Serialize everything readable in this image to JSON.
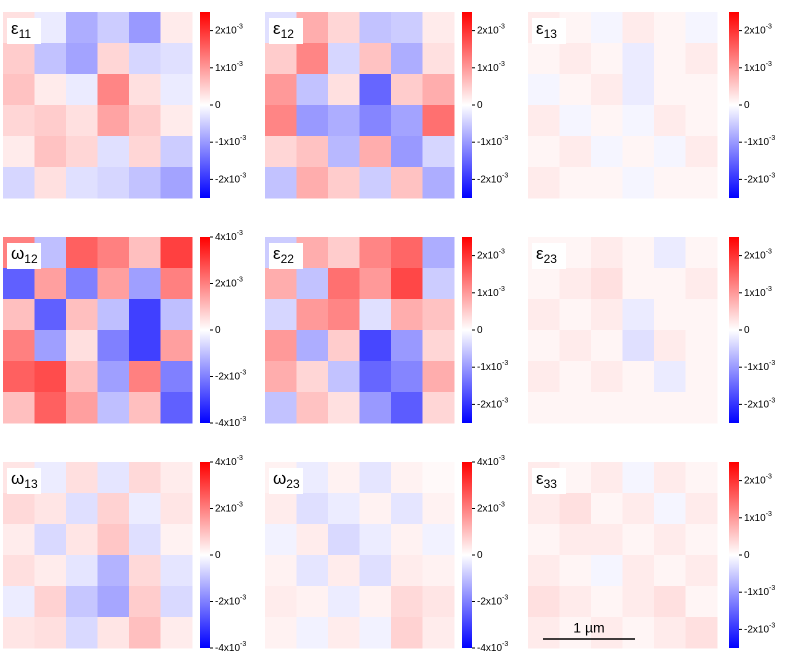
{
  "chart_data": [
    {
      "type": "heatmap",
      "symbol": "ε",
      "subscript": "11",
      "zlim": [
        -0.0025,
        0.0025
      ],
      "zticks": [
        {
          "value": 0.002,
          "label": "2x10",
          "exponent": "-3"
        },
        {
          "value": 0.001,
          "label": "1x10",
          "exponent": "-3"
        },
        0,
        {
          "value": -0.001,
          "label": "-1x10",
          "exponent": "-3"
        },
        {
          "value": -0.002,
          "label": "-2x10",
          "exponent": "-3"
        }
      ],
      "z": [
        [
          0.0003,
          -0.0002,
          -0.0008,
          -0.0005,
          -0.001,
          0.0002
        ],
        [
          0.0005,
          -0.0006,
          -0.0009,
          0.0004,
          -0.0004,
          -0.0003
        ],
        [
          0.0006,
          0.0002,
          -0.0002,
          0.0012,
          0.0003,
          -0.0002
        ],
        [
          0.0004,
          0.0005,
          0.0003,
          0.0009,
          0.0005,
          0.0002
        ],
        [
          0.0002,
          0.0006,
          0.0004,
          -0.0003,
          0.0004,
          -0.0005
        ],
        [
          -0.0004,
          0.0003,
          -0.0003,
          -0.0004,
          -0.0006,
          -0.0009
        ]
      ]
    },
    {
      "type": "heatmap",
      "symbol": "ε",
      "subscript": "12",
      "zlim": [
        -0.0025,
        0.0025
      ],
      "zticks": [
        {
          "value": 0.002,
          "label": "2x10",
          "exponent": "-3"
        },
        {
          "value": 0.001,
          "label": "1x10",
          "exponent": "-3"
        },
        0,
        {
          "value": -0.001,
          "label": "-1x10",
          "exponent": "-3"
        },
        {
          "value": -0.002,
          "label": "-2x10",
          "exponent": "-3"
        }
      ],
      "z": [
        [
          -0.0003,
          0.0008,
          0.0004,
          -0.0006,
          -0.0005,
          0.0002
        ],
        [
          0.0005,
          0.0012,
          -0.0004,
          0.0006,
          -0.0008,
          0.0003
        ],
        [
          0.001,
          -0.0006,
          0.0003,
          -0.0015,
          0.0005,
          0.0008
        ],
        [
          0.0012,
          -0.001,
          -0.0008,
          -0.0012,
          -0.0009,
          0.0014
        ],
        [
          0.0004,
          0.0006,
          -0.0007,
          0.0008,
          -0.001,
          -0.0004
        ],
        [
          -0.0006,
          0.0008,
          0.0005,
          -0.0005,
          0.0006,
          -0.0008
        ]
      ]
    },
    {
      "type": "heatmap",
      "symbol": "ε",
      "subscript": "13",
      "zlim": [
        -0.0025,
        0.0025
      ],
      "zticks": [
        {
          "value": 0.002,
          "label": "2x10",
          "exponent": "-3"
        },
        {
          "value": 0.001,
          "label": "1x10",
          "exponent": "-3"
        },
        0,
        {
          "value": -0.001,
          "label": "-1x10",
          "exponent": "-3"
        },
        {
          "value": -0.002,
          "label": "-2x10",
          "exponent": "-3"
        }
      ],
      "z": [
        [
          0.0002,
          0.0001,
          -0.0001,
          0.0002,
          0.0001,
          -0.0001
        ],
        [
          0.0001,
          0.0002,
          0.0001,
          -0.0002,
          0.0001,
          0.0002
        ],
        [
          -0.0001,
          0.0001,
          0.0002,
          -0.0002,
          0.0001,
          0.0001
        ],
        [
          0.0002,
          -0.0001,
          0.0001,
          -0.0001,
          0.0002,
          0.0001
        ],
        [
          0.0001,
          0.0002,
          -0.0001,
          0.0001,
          -0.0001,
          0.0002
        ],
        [
          0.0002,
          0.0001,
          0.0001,
          -0.0001,
          0.0001,
          0.0001
        ]
      ]
    },
    {
      "type": "heatmap",
      "symbol": "ω",
      "subscript": "12",
      "zlim": [
        -0.004,
        0.004
      ],
      "zticks": [
        {
          "value": 0.004,
          "label": "4x10",
          "exponent": "-3"
        },
        {
          "value": 0.002,
          "label": "2x10",
          "exponent": "-3"
        },
        0,
        {
          "value": -0.002,
          "label": "-2x10",
          "exponent": "-3"
        },
        {
          "value": -0.004,
          "label": "-4x10",
          "exponent": "-3"
        }
      ],
      "z": [
        [
          0.002,
          -0.001,
          0.0025,
          0.002,
          0.001,
          0.003
        ],
        [
          -0.0025,
          0.0015,
          -0.002,
          0.0015,
          -0.0015,
          0.002
        ],
        [
          0.001,
          -0.0025,
          0.001,
          -0.001,
          -0.003,
          -0.001
        ],
        [
          0.002,
          -0.0015,
          0.0005,
          -0.002,
          -0.003,
          0.0015
        ],
        [
          0.0025,
          0.0028,
          0.001,
          -0.0015,
          0.002,
          -0.002
        ],
        [
          0.001,
          0.0025,
          0.0015,
          -0.001,
          0.001,
          -0.0025
        ]
      ]
    },
    {
      "type": "heatmap",
      "symbol": "ε",
      "subscript": "22",
      "zlim": [
        -0.0025,
        0.0025
      ],
      "zticks": [
        {
          "value": 0.002,
          "label": "2x10",
          "exponent": "-3"
        },
        {
          "value": 0.001,
          "label": "1x10",
          "exponent": "-3"
        },
        0,
        {
          "value": -0.001,
          "label": "-1x10",
          "exponent": "-3"
        },
        {
          "value": -0.002,
          "label": "-2x10",
          "exponent": "-3"
        }
      ],
      "z": [
        [
          -0.0005,
          0.0008,
          0.0005,
          0.0012,
          0.0015,
          -0.0008
        ],
        [
          0.0008,
          -0.0006,
          0.0014,
          0.001,
          0.0018,
          -0.0005
        ],
        [
          -0.0004,
          0.001,
          0.0012,
          -0.0003,
          0.0008,
          0.0006
        ],
        [
          0.001,
          -0.0008,
          0.0005,
          -0.0018,
          -0.001,
          0.0004
        ],
        [
          0.0008,
          0.0004,
          -0.0006,
          -0.0015,
          -0.0012,
          0.0008
        ],
        [
          -0.0006,
          0.0006,
          0.0003,
          -0.001,
          -0.0016,
          0.0004
        ]
      ]
    },
    {
      "type": "heatmap",
      "symbol": "ε",
      "subscript": "23",
      "zlim": [
        -0.0025,
        0.0025
      ],
      "zticks": [
        {
          "value": 0.002,
          "label": "2x10",
          "exponent": "-3"
        },
        {
          "value": 0.001,
          "label": "1x10",
          "exponent": "-3"
        },
        0,
        {
          "value": -0.001,
          "label": "-1x10",
          "exponent": "-3"
        },
        {
          "value": -0.002,
          "label": "-2x10",
          "exponent": "-3"
        }
      ],
      "z": [
        [
          0.0001,
          0.0001,
          0.0002,
          0.0001,
          -0.0002,
          0.0001
        ],
        [
          0.0001,
          0.0002,
          0.0003,
          0.0001,
          0.0001,
          0.0002
        ],
        [
          0.0002,
          0.0001,
          0.0002,
          -0.0002,
          0.0001,
          0.0001
        ],
        [
          0.0001,
          0.0002,
          0.0001,
          -0.0003,
          0.0002,
          0.0001
        ],
        [
          0.0002,
          0.0001,
          0.0002,
          0.0001,
          -0.0002,
          0.0001
        ],
        [
          0.0001,
          0.0001,
          0.0001,
          0.0001,
          0.0001,
          0.0001
        ]
      ]
    },
    {
      "type": "heatmap",
      "symbol": "ω",
      "subscript": "13",
      "zlim": [
        -0.004,
        0.004
      ],
      "zticks": [
        {
          "value": 0.004,
          "label": "4x10",
          "exponent": "-3"
        },
        {
          "value": 0.002,
          "label": "2x10",
          "exponent": "-3"
        },
        0,
        {
          "value": -0.002,
          "label": "-2x10",
          "exponent": "-3"
        },
        {
          "value": -0.004,
          "label": "-4x10",
          "exponent": "-3"
        }
      ],
      "z": [
        [
          0.0004,
          -0.0003,
          0.0005,
          -0.0004,
          0.0006,
          0.0003
        ],
        [
          0.0006,
          0.0004,
          -0.0005,
          0.0007,
          -0.0003,
          0.0004
        ],
        [
          0.0003,
          -0.0006,
          0.0004,
          0.0009,
          -0.0005,
          0.0002
        ],
        [
          0.0005,
          0.0003,
          -0.0004,
          -0.0012,
          0.0006,
          -0.0004
        ],
        [
          -0.0003,
          0.0007,
          -0.0009,
          -0.0014,
          0.0008,
          -0.0006
        ],
        [
          0.0004,
          0.0005,
          -0.0006,
          0.0004,
          0.001,
          0.0003
        ]
      ]
    },
    {
      "type": "heatmap",
      "symbol": "ω",
      "subscript": "23",
      "zlim": [
        -0.004,
        0.004
      ],
      "zticks": [
        {
          "value": 0.004,
          "label": "4x10",
          "exponent": "-3"
        },
        {
          "value": 0.002,
          "label": "2x10",
          "exponent": "-3"
        },
        0,
        {
          "value": -0.002,
          "label": "-2x10",
          "exponent": "-3"
        },
        {
          "value": -0.004,
          "label": "-4x10",
          "exponent": "-3"
        }
      ],
      "z": [
        [
          0.0002,
          -0.0003,
          0.0002,
          -0.0004,
          0.0002,
          0.0001
        ],
        [
          0.0003,
          -0.0005,
          -0.0003,
          0.0002,
          -0.0004,
          0.0002
        ],
        [
          -0.0002,
          0.0003,
          -0.0006,
          -0.0003,
          0.0002,
          -0.0002
        ],
        [
          0.0002,
          -0.0004,
          0.0003,
          -0.0005,
          0.0003,
          0.0002
        ],
        [
          0.0003,
          0.0002,
          -0.0003,
          0.0002,
          0.0006,
          0.0004
        ],
        [
          0.0002,
          -0.0002,
          0.0003,
          -0.0002,
          0.0007,
          0.0003
        ]
      ]
    },
    {
      "type": "heatmap",
      "symbol": "ε",
      "subscript": "33",
      "zlim": [
        -0.0025,
        0.0025
      ],
      "zticks": [
        {
          "value": 0.002,
          "label": "2x10",
          "exponent": "-3"
        },
        {
          "value": 0.001,
          "label": "1x10",
          "exponent": "-3"
        },
        0,
        {
          "value": -0.001,
          "label": "-1x10",
          "exponent": "-3"
        },
        {
          "value": -0.002,
          "label": "-2x10",
          "exponent": "-3"
        }
      ],
      "z": [
        [
          0.0002,
          0.0001,
          0.0002,
          -0.0001,
          0.0002,
          0.0001
        ],
        [
          0.0002,
          0.0003,
          0.0001,
          0.0002,
          -0.0001,
          0.0002
        ],
        [
          0.0001,
          0.0002,
          0.0002,
          0.0001,
          0.0002,
          0.0001
        ],
        [
          0.0002,
          0.0001,
          -0.0001,
          0.0002,
          0.0001,
          0.0002
        ],
        [
          0.0003,
          0.0002,
          0.0001,
          0.0002,
          0.0003,
          0.0001
        ],
        [
          0.0002,
          0.0001,
          0.0002,
          0.0001,
          0.0002,
          0.0003
        ]
      ],
      "scalebar": "1 µm"
    }
  ]
}
